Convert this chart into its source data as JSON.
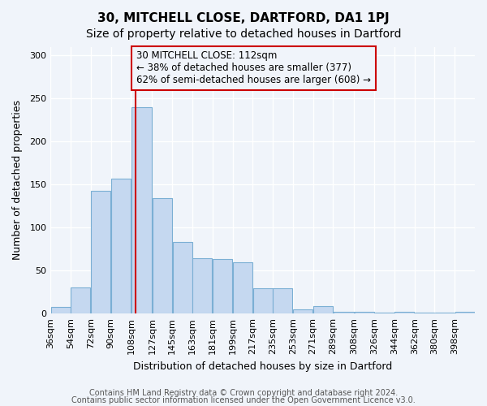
{
  "title": "30, MITCHELL CLOSE, DARTFORD, DA1 1PJ",
  "subtitle": "Size of property relative to detached houses in Dartford",
  "xlabel": "Distribution of detached houses by size in Dartford",
  "ylabel": "Number of detached properties",
  "footer_line1": "Contains HM Land Registry data © Crown copyright and database right 2024.",
  "footer_line2": "Contains public sector information licensed under the Open Government Licence v3.0.",
  "bin_labels": [
    "36sqm",
    "54sqm",
    "72sqm",
    "90sqm",
    "108sqm",
    "127sqm",
    "145sqm",
    "163sqm",
    "181sqm",
    "199sqm",
    "217sqm",
    "235sqm",
    "253sqm",
    "271sqm",
    "289sqm",
    "308sqm",
    "326sqm",
    "344sqm",
    "362sqm",
    "380sqm",
    "398sqm"
  ],
  "bin_edges": [
    36,
    54,
    72,
    90,
    108,
    127,
    145,
    163,
    181,
    199,
    217,
    235,
    253,
    271,
    289,
    308,
    326,
    344,
    362,
    380,
    398,
    416
  ],
  "bar_heights": [
    8,
    30,
    143,
    157,
    240,
    134,
    83,
    64,
    63,
    60,
    29,
    29,
    5,
    9,
    2,
    2,
    1,
    2,
    1,
    1,
    2
  ],
  "bar_color": "#c5d8f0",
  "bar_edgecolor": "#7bafd4",
  "property_value": 112,
  "vline_color": "#cc0000",
  "annotation_text": "30 MITCHELL CLOSE: 112sqm\n← 38% of detached houses are smaller (377)\n62% of semi-detached houses are larger (608) →",
  "annotation_box_edgecolor": "#cc0000",
  "xlim": [
    36,
    416
  ],
  "ylim": [
    0,
    310
  ],
  "yticks": [
    0,
    50,
    100,
    150,
    200,
    250,
    300
  ],
  "background_color": "#f0f4fa",
  "grid_color": "#ffffff",
  "title_fontsize": 11,
  "subtitle_fontsize": 10,
  "label_fontsize": 9,
  "tick_fontsize": 8,
  "footer_fontsize": 7
}
